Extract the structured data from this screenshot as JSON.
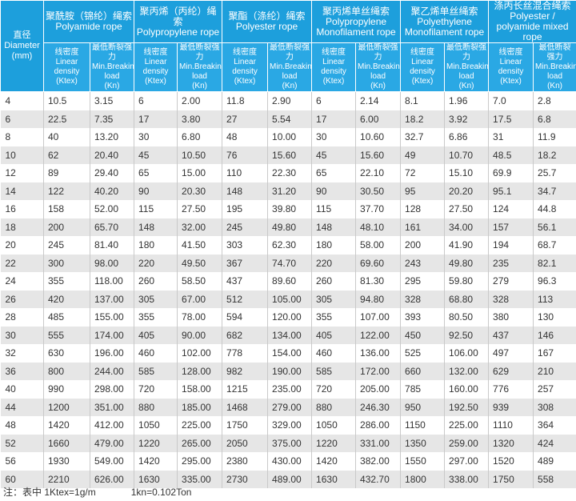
{
  "table": {
    "diameter_header": {
      "zh": "直径",
      "en": "Diameter",
      "unit": "(mm)"
    },
    "groups": [
      {
        "zh": "聚酰胺（锦纶）绳索",
        "en": "Polyamide rope"
      },
      {
        "zh": "聚丙烯（丙纶）绳索",
        "en": "Polypropylene rope"
      },
      {
        "zh": "聚酯（涤纶）绳索",
        "en": "Polyester rope"
      },
      {
        "zh": "聚丙烯单丝绳索",
        "en": "Polypropylene Monofilament rope"
      },
      {
        "zh": "聚乙烯单丝绳索",
        "en": "Polyethylene Monofilament rope"
      },
      {
        "zh": "涤丙长丝混合绳索",
        "en": "Polyester / polyamide mixed rope"
      }
    ],
    "subheaders": [
      {
        "zh": "线密度",
        "en": "Linear density",
        "unit": "(Ktex)"
      },
      {
        "zh": "最低断裂强力",
        "en": "Min.Breaking load",
        "unit": "(Kn)"
      }
    ],
    "rows": [
      [
        "4",
        "10.5",
        "3.15",
        "6",
        "2.00",
        "11.8",
        "2.90",
        "6",
        "2.14",
        "8.1",
        "1.96",
        "7.0",
        "2.8"
      ],
      [
        "6",
        "22.5",
        "7.35",
        "17",
        "3.80",
        "27",
        "5.54",
        "17",
        "6.00",
        "18.2",
        "3.92",
        "17.5",
        "6.8"
      ],
      [
        "8",
        "40",
        "13.20",
        "30",
        "6.80",
        "48",
        "10.00",
        "30",
        "10.60",
        "32.7",
        "6.86",
        "31",
        "11.9"
      ],
      [
        "10",
        "62",
        "20.40",
        "45",
        "10.50",
        "76",
        "15.60",
        "45",
        "15.60",
        "49",
        "10.70",
        "48.5",
        "18.2"
      ],
      [
        "12",
        "89",
        "29.40",
        "65",
        "15.00",
        "110",
        "22.30",
        "65",
        "22.10",
        "72",
        "15.10",
        "69.9",
        "25.7"
      ],
      [
        "14",
        "122",
        "40.20",
        "90",
        "20.30",
        "148",
        "31.20",
        "90",
        "30.50",
        "95",
        "20.20",
        "95.1",
        "34.7"
      ],
      [
        "16",
        "158",
        "52.00",
        "115",
        "27.50",
        "195",
        "39.80",
        "115",
        "37.70",
        "128",
        "27.50",
        "124",
        "44.8"
      ],
      [
        "18",
        "200",
        "65.70",
        "148",
        "32.00",
        "245",
        "49.80",
        "148",
        "48.10",
        "161",
        "34.00",
        "157",
        "56.1"
      ],
      [
        "20",
        "245",
        "81.40",
        "180",
        "41.50",
        "303",
        "62.30",
        "180",
        "58.00",
        "200",
        "41.90",
        "194",
        "68.7"
      ],
      [
        "22",
        "300",
        "98.00",
        "220",
        "49.50",
        "367",
        "74.70",
        "220",
        "69.60",
        "243",
        "49.80",
        "235",
        "82.1"
      ],
      [
        "24",
        "355",
        "118.00",
        "260",
        "58.50",
        "437",
        "89.60",
        "260",
        "81.30",
        "295",
        "59.80",
        "279",
        "96.3"
      ],
      [
        "26",
        "420",
        "137.00",
        "305",
        "67.00",
        "512",
        "105.00",
        "305",
        "94.80",
        "328",
        "68.80",
        "328",
        "113"
      ],
      [
        "28",
        "485",
        "155.00",
        "355",
        "78.00",
        "594",
        "120.00",
        "355",
        "107.00",
        "393",
        "80.50",
        "380",
        "130"
      ],
      [
        "30",
        "555",
        "174.00",
        "405",
        "90.00",
        "682",
        "134.00",
        "405",
        "122.00",
        "450",
        "92.50",
        "437",
        "146"
      ],
      [
        "32",
        "630",
        "196.00",
        "460",
        "102.00",
        "778",
        "154.00",
        "460",
        "136.00",
        "525",
        "106.00",
        "497",
        "167"
      ],
      [
        "36",
        "800",
        "244.00",
        "585",
        "128.00",
        "982",
        "190.00",
        "585",
        "172.00",
        "660",
        "132.00",
        "629",
        "210"
      ],
      [
        "40",
        "990",
        "298.00",
        "720",
        "158.00",
        "1215",
        "235.00",
        "720",
        "205.00",
        "785",
        "160.00",
        "776",
        "257"
      ],
      [
        "44",
        "1200",
        "351.00",
        "880",
        "185.00",
        "1468",
        "279.00",
        "880",
        "246.30",
        "950",
        "192.50",
        "939",
        "308"
      ],
      [
        "48",
        "1420",
        "412.00",
        "1050",
        "225.00",
        "1750",
        "329.00",
        "1050",
        "286.00",
        "1150",
        "225.00",
        "1110",
        "364"
      ],
      [
        "52",
        "1660",
        "479.00",
        "1220",
        "265.00",
        "2050",
        "375.00",
        "1220",
        "331.00",
        "1350",
        "259.00",
        "1320",
        "424"
      ],
      [
        "56",
        "1930",
        "549.00",
        "1420",
        "295.00",
        "2380",
        "430.00",
        "1420",
        "382.00",
        "1550",
        "297.00",
        "1520",
        "489"
      ],
      [
        "60",
        "2210",
        "626.00",
        "1630",
        "335.00",
        "2730",
        "489.00",
        "1630",
        "432.70",
        "1800",
        "338.00",
        "1750",
        "558"
      ]
    ]
  },
  "footnote": [
    "注：表中 1Ktex=1g/m",
    "1kn=0.102Ton"
  ]
}
